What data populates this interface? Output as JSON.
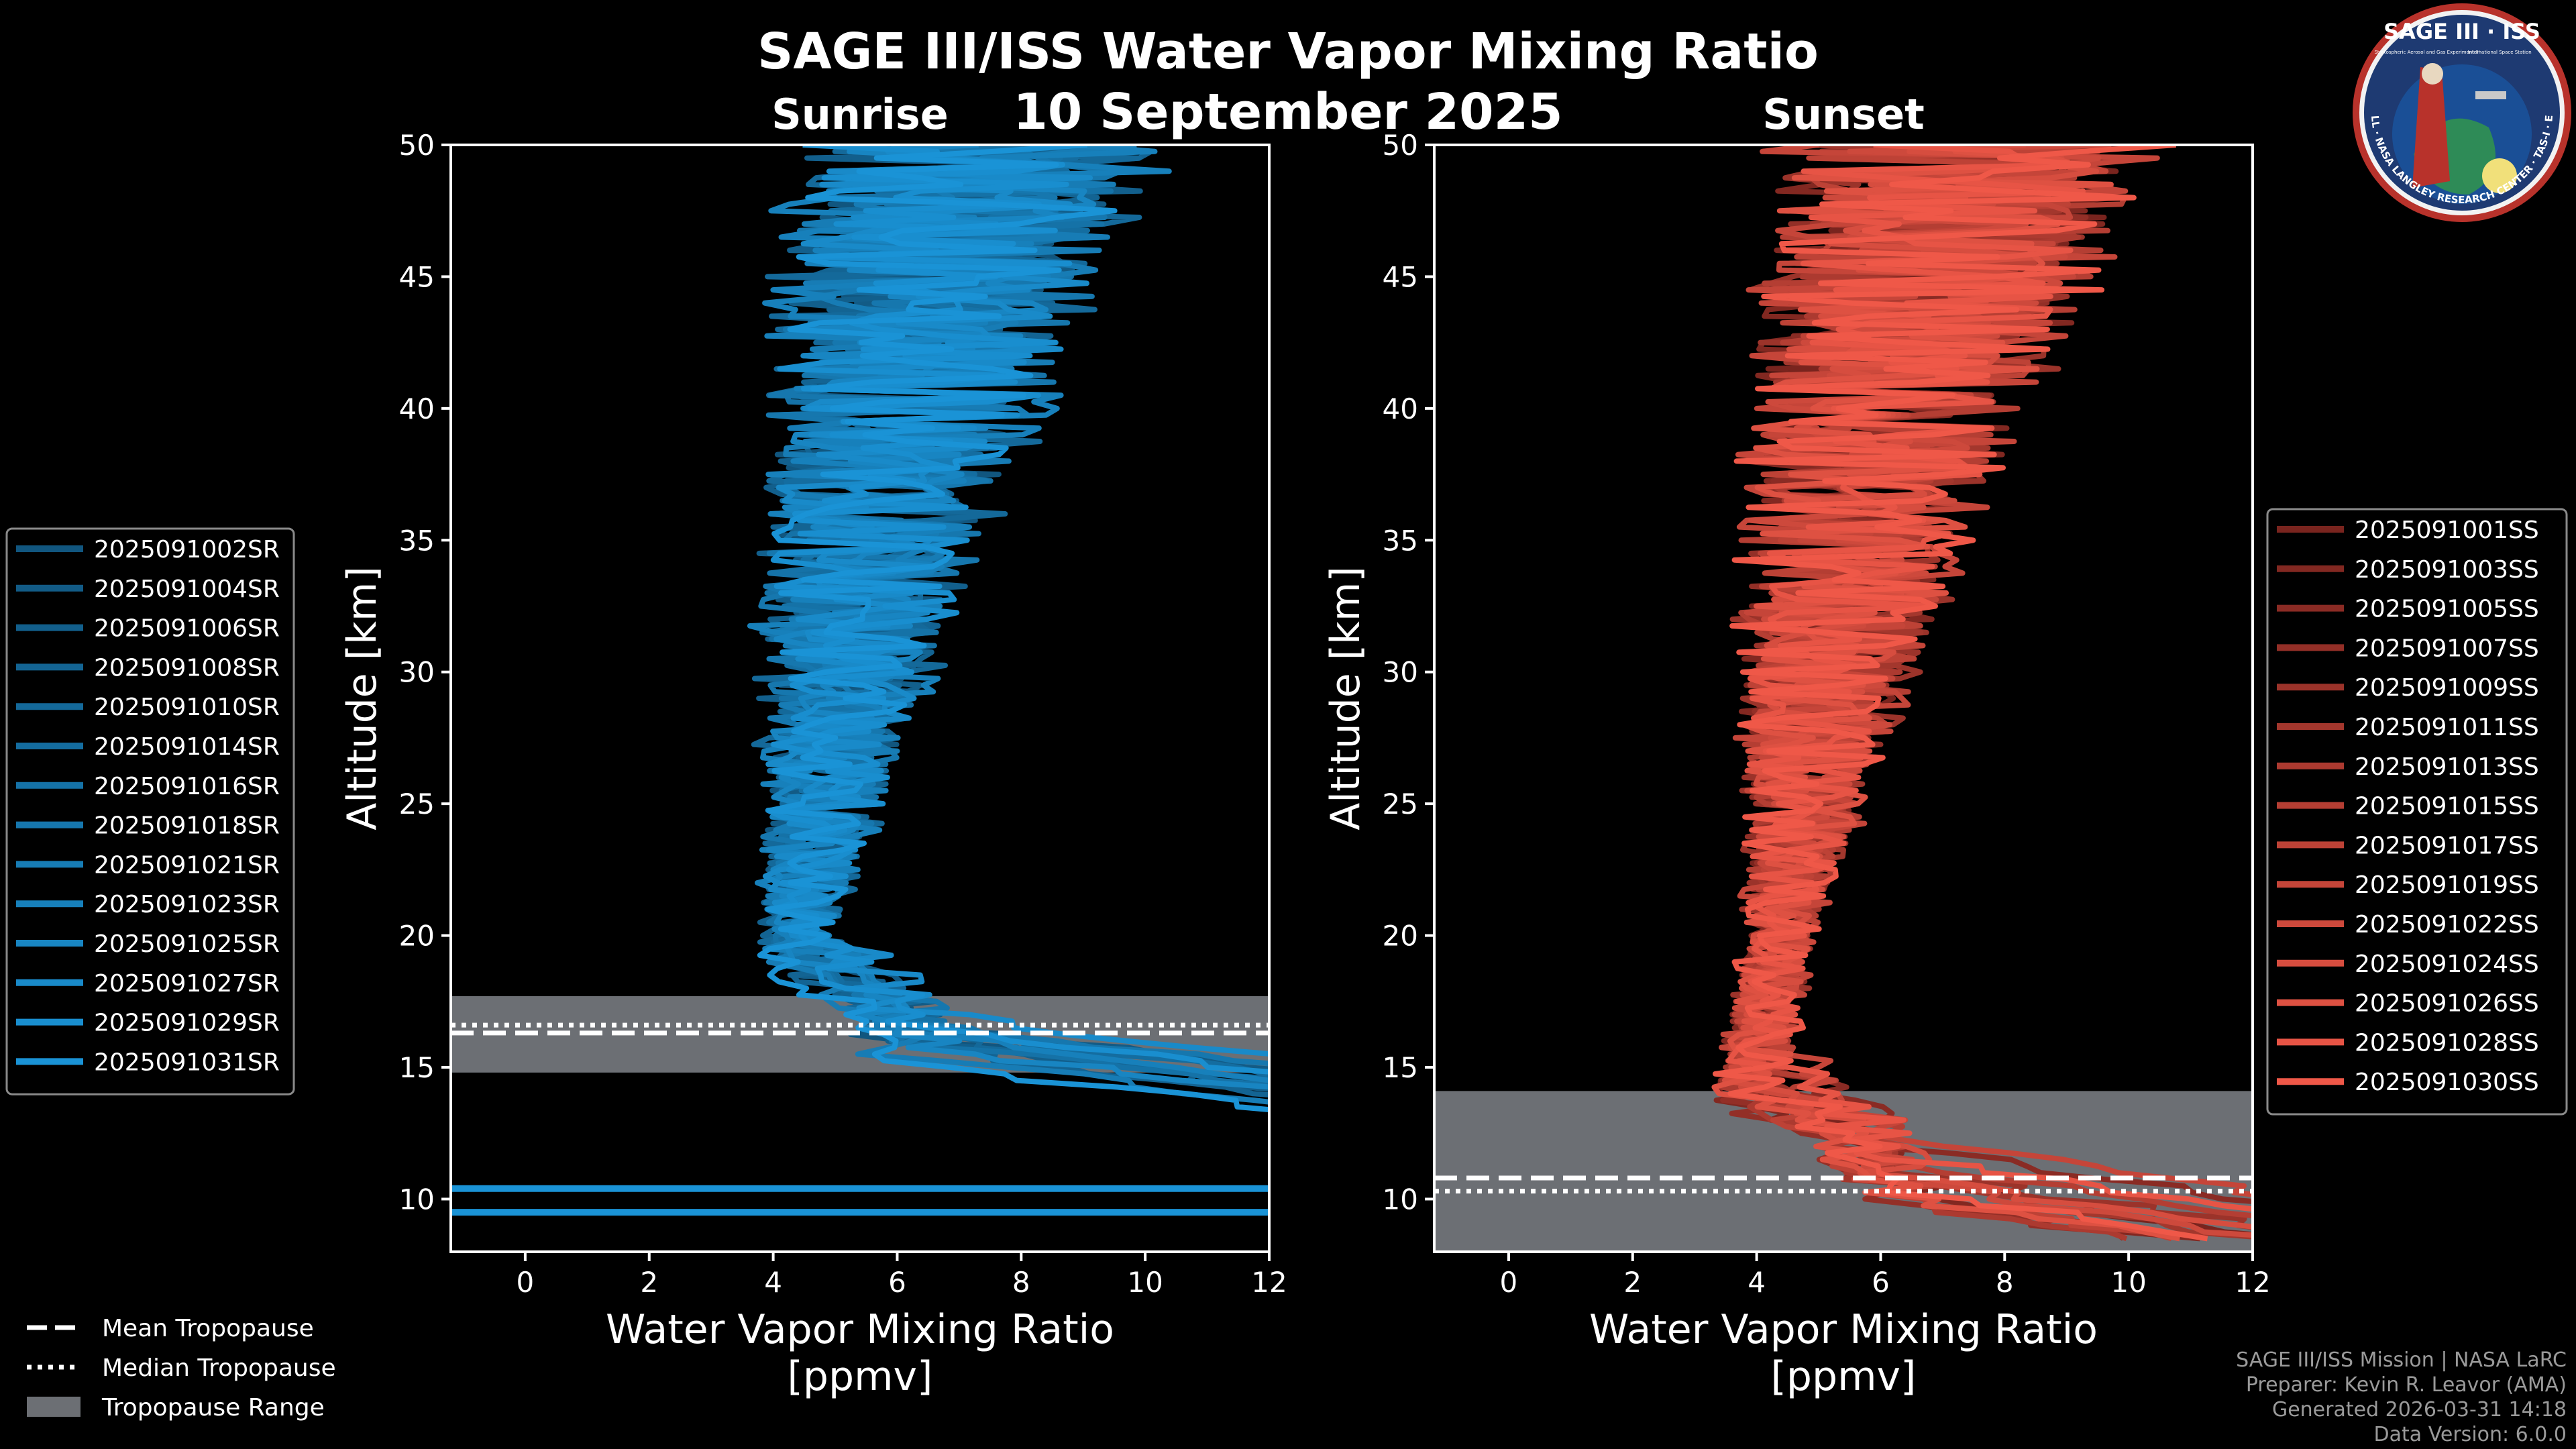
{
  "header": {
    "title": "SAGE III/ISS Water Vapor Mixing Ratio",
    "date": "10 September 2025",
    "left_panel_title": "Sunrise",
    "right_panel_title": "Sunset"
  },
  "logo": {
    "text_top": "SAGE III · ISS",
    "text_ring": "BALL · NASA LANGLEY RESEARCH CENTER · TAS-I · ESA",
    "text_small_left": "Stratospheric Aerosol and Gas Experiment III",
    "text_small_right": "International Space Station"
  },
  "colors": {
    "background": "#000000",
    "sunrise": "#1a93d6",
    "sunset": "#ef5848",
    "tropopause_range": "#6c6f74"
  },
  "chart_data": [
    {
      "type": "line",
      "panel": "Sunrise",
      "xlabel": "Water Vapor Mixing Ratio\n[ppmv]",
      "ylabel": "Altitude [km]",
      "xlim": [
        -1.2,
        12
      ],
      "ylim": [
        8,
        50
      ],
      "xticks": [
        0,
        2,
        4,
        6,
        8,
        10,
        12
      ],
      "yticks": [
        10,
        15,
        20,
        25,
        30,
        35,
        40,
        45,
        50
      ],
      "legend_position": "left",
      "tropopause": {
        "mean": 16.3,
        "median": 16.6,
        "range": [
          14.8,
          17.7
        ]
      },
      "extra_lines": [
        10.4,
        9.5
      ],
      "series": [
        {
          "name": "2025091002SR",
          "seed": 11,
          "trop": 16.3,
          "spread": 1.0
        },
        {
          "name": "2025091004SR",
          "seed": 12,
          "trop": 16.8,
          "spread": 0.9
        },
        {
          "name": "2025091006SR",
          "seed": 13,
          "trop": 16.1,
          "spread": 1.1
        },
        {
          "name": "2025091008SR",
          "seed": 14,
          "trop": 15.9,
          "spread": 1.0
        },
        {
          "name": "2025091010SR",
          "seed": 15,
          "trop": 16.4,
          "spread": 1.2
        },
        {
          "name": "2025091014SR",
          "seed": 16,
          "trop": 16.6,
          "spread": 0.9
        },
        {
          "name": "2025091016SR",
          "seed": 17,
          "trop": 16.2,
          "spread": 1.0
        },
        {
          "name": "2025091018SR",
          "seed": 18,
          "trop": 16.9,
          "spread": 1.1
        },
        {
          "name": "2025091021SR",
          "seed": 19,
          "trop": 15.6,
          "spread": 1.0
        },
        {
          "name": "2025091023SR",
          "seed": 20,
          "trop": 16.5,
          "spread": 1.2
        },
        {
          "name": "2025091025SR",
          "seed": 21,
          "trop": 16.0,
          "spread": 0.9
        },
        {
          "name": "2025091027SR",
          "seed": 22,
          "trop": 17.3,
          "spread": 1.0
        },
        {
          "name": "2025091029SR",
          "seed": 23,
          "trop": 16.7,
          "spread": 1.1
        },
        {
          "name": "2025091031SR",
          "seed": 24,
          "trop": 15.3,
          "spread": 1.0
        }
      ]
    },
    {
      "type": "line",
      "panel": "Sunset",
      "xlabel": "Water Vapor Mixing Ratio\n[ppmv]",
      "ylabel": "Altitude [km]",
      "xlim": [
        -1.2,
        12
      ],
      "ylim": [
        8,
        50
      ],
      "xticks": [
        0,
        2,
        4,
        6,
        8,
        10,
        12
      ],
      "yticks": [
        10,
        15,
        20,
        25,
        30,
        35,
        40,
        45,
        50
      ],
      "legend_position": "right",
      "tropopause": {
        "mean": 10.8,
        "median": 10.3,
        "range": [
          8,
          14.1
        ]
      },
      "extra_lines": [],
      "series": [
        {
          "name": "2025091001SS",
          "seed": 31,
          "trop": 11.0,
          "spread": 1.0
        },
        {
          "name": "2025091003SS",
          "seed": 32,
          "trop": 10.5,
          "spread": 1.1
        },
        {
          "name": "2025091005SS",
          "seed": 33,
          "trop": 12.2,
          "spread": 0.9
        },
        {
          "name": "2025091007SS",
          "seed": 34,
          "trop": 10.2,
          "spread": 1.0
        },
        {
          "name": "2025091009SS",
          "seed": 35,
          "trop": 11.3,
          "spread": 1.2
        },
        {
          "name": "2025091011SS",
          "seed": 36,
          "trop": 10.8,
          "spread": 1.0
        },
        {
          "name": "2025091013SS",
          "seed": 37,
          "trop": 10.0,
          "spread": 0.9
        },
        {
          "name": "2025091015SS",
          "seed": 38,
          "trop": 11.6,
          "spread": 1.1
        },
        {
          "name": "2025091017SS",
          "seed": 39,
          "trop": 10.4,
          "spread": 1.0
        },
        {
          "name": "2025091019SS",
          "seed": 40,
          "trop": 12.6,
          "spread": 1.2
        },
        {
          "name": "2025091022SS",
          "seed": 41,
          "trop": 10.9,
          "spread": 1.0
        },
        {
          "name": "2025091024SS",
          "seed": 42,
          "trop": 11.1,
          "spread": 0.9
        },
        {
          "name": "2025091026SS",
          "seed": 43,
          "trop": 10.3,
          "spread": 1.1
        },
        {
          "name": "2025091028SS",
          "seed": 44,
          "trop": 11.8,
          "spread": 1.0
        },
        {
          "name": "2025091030SS",
          "seed": 45,
          "trop": 10.6,
          "spread": 1.2
        }
      ]
    }
  ],
  "tropopause_legend": [
    {
      "label": "Mean Tropopause",
      "style": "dashed"
    },
    {
      "label": "Median Tropopause",
      "style": "dotted"
    },
    {
      "label": "Tropopause Range",
      "style": "patch"
    }
  ],
  "credits": {
    "line1": "SAGE III/ISS Mission | NASA LaRC",
    "line2": "Preparer: Kevin R. Leavor (AMA)",
    "line3": "Generated 2026-03-31 14:18",
    "line4": "Data Version: 6.0.0"
  }
}
